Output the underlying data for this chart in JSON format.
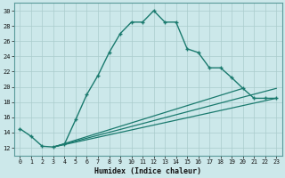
{
  "xlabel": "Humidex (Indice chaleur)",
  "ylabel": "",
  "bg_color": "#cce8ea",
  "grid_color": "#aacccc",
  "line_color": "#1a7a6e",
  "xlim": [
    -0.5,
    23.5
  ],
  "ylim": [
    11,
    31
  ],
  "xticks": [
    0,
    1,
    2,
    3,
    4,
    5,
    6,
    7,
    8,
    9,
    10,
    11,
    12,
    13,
    14,
    15,
    16,
    17,
    18,
    19,
    20,
    21,
    22,
    23
  ],
  "yticks": [
    12,
    14,
    16,
    18,
    20,
    22,
    24,
    26,
    28,
    30
  ],
  "series1_x": [
    0,
    1,
    2,
    3,
    4,
    5,
    6,
    7,
    8,
    9,
    10,
    11,
    12,
    13,
    14,
    15,
    16,
    17,
    18,
    19,
    20,
    21,
    22,
    23
  ],
  "series1_y": [
    14.5,
    13.5,
    12.2,
    12.1,
    12.5,
    15.7,
    19.0,
    21.5,
    24.5,
    27.0,
    28.5,
    28.5,
    30.0,
    28.5,
    28.5,
    25.0,
    24.5,
    22.5,
    22.5,
    21.2,
    19.8,
    18.5,
    18.5,
    18.5
  ],
  "series2_x": [
    3,
    23
  ],
  "series2_y": [
    12.1,
    18.5
  ],
  "series3_x": [
    3,
    20
  ],
  "series3_y": [
    12.1,
    19.8
  ],
  "series4_x": [
    3,
    23
  ],
  "series4_y": [
    12.1,
    19.8
  ]
}
